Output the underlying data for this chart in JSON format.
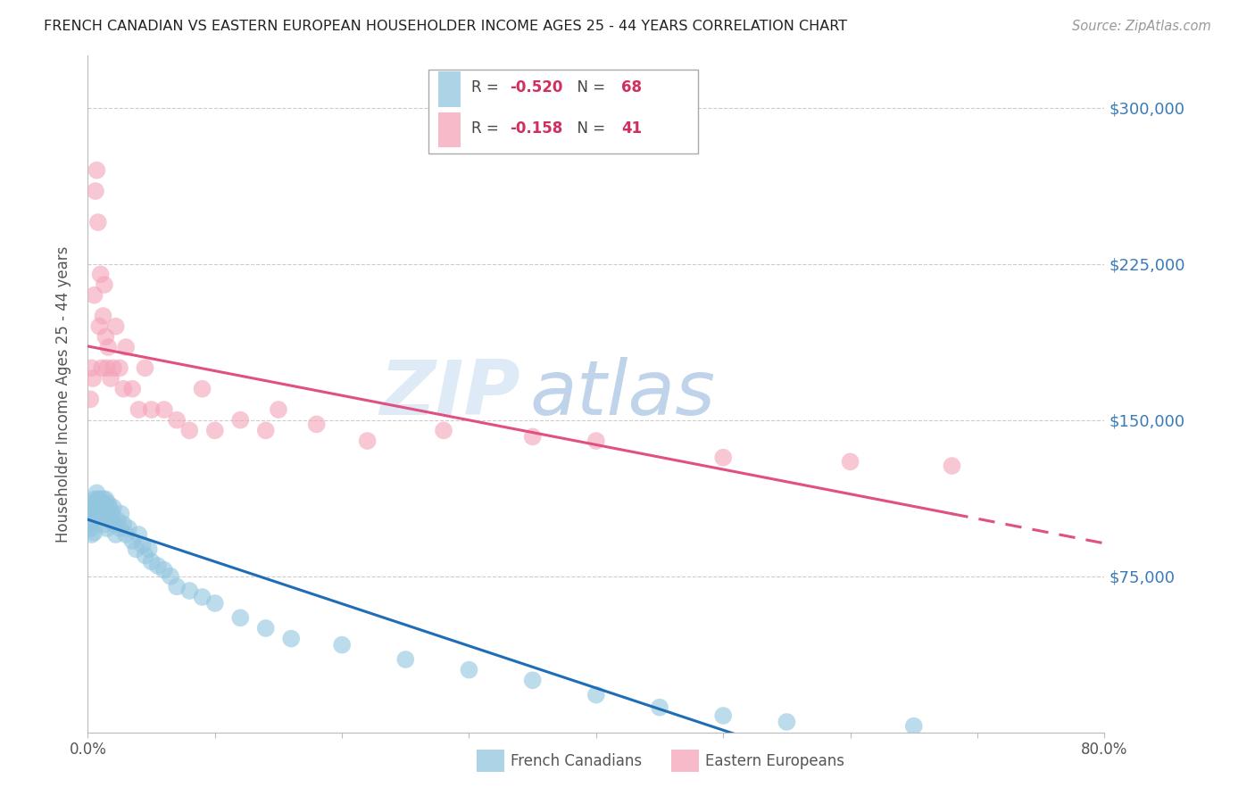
{
  "title": "FRENCH CANADIAN VS EASTERN EUROPEAN HOUSEHOLDER INCOME AGES 25 - 44 YEARS CORRELATION CHART",
  "source": "Source: ZipAtlas.com",
  "ylabel": "Householder Income Ages 25 - 44 years",
  "yticks": [
    0,
    75000,
    150000,
    225000,
    300000
  ],
  "ytick_labels": [
    "",
    "$75,000",
    "$150,000",
    "$225,000",
    "$300,000"
  ],
  "ymin": 0,
  "ymax": 325000,
  "xmin": 0.0,
  "xmax": 0.8,
  "french_canadians_color": "#92c5de",
  "eastern_europeans_color": "#f4a3b8",
  "trendline_blue_color": "#1f6db5",
  "trendline_pink_color": "#e05080",
  "watermark_zip": "ZIP",
  "watermark_atlas": "atlas",
  "fc_R": "-0.520",
  "fc_N": "68",
  "ee_R": "-0.158",
  "ee_N": "41",
  "legend_label_fc": "French Canadians",
  "legend_label_ee": "Eastern Europeans",
  "fc_x": [
    0.001,
    0.002,
    0.002,
    0.003,
    0.003,
    0.004,
    0.004,
    0.005,
    0.005,
    0.006,
    0.006,
    0.007,
    0.007,
    0.008,
    0.008,
    0.009,
    0.009,
    0.01,
    0.01,
    0.011,
    0.011,
    0.012,
    0.012,
    0.013,
    0.013,
    0.014,
    0.014,
    0.015,
    0.015,
    0.016,
    0.017,
    0.018,
    0.019,
    0.02,
    0.021,
    0.022,
    0.023,
    0.025,
    0.026,
    0.028,
    0.03,
    0.032,
    0.035,
    0.038,
    0.04,
    0.043,
    0.045,
    0.048,
    0.05,
    0.055,
    0.06,
    0.065,
    0.07,
    0.08,
    0.09,
    0.1,
    0.12,
    0.14,
    0.16,
    0.2,
    0.25,
    0.3,
    0.35,
    0.4,
    0.45,
    0.5,
    0.55,
    0.65
  ],
  "fc_y": [
    100000,
    105000,
    98000,
    108000,
    95000,
    110000,
    102000,
    112000,
    96000,
    110000,
    104000,
    108000,
    115000,
    112000,
    108000,
    105000,
    112000,
    110000,
    108000,
    105000,
    110000,
    108000,
    112000,
    105000,
    100000,
    108000,
    112000,
    105000,
    98000,
    110000,
    108000,
    102000,
    105000,
    108000,
    100000,
    95000,
    102000,
    98000,
    105000,
    100000,
    95000,
    98000,
    92000,
    88000,
    95000,
    90000,
    85000,
    88000,
    82000,
    80000,
    78000,
    75000,
    70000,
    68000,
    65000,
    62000,
    55000,
    50000,
    45000,
    42000,
    35000,
    30000,
    25000,
    18000,
    12000,
    8000,
    5000,
    3000
  ],
  "ee_x": [
    0.002,
    0.003,
    0.004,
    0.005,
    0.006,
    0.007,
    0.008,
    0.009,
    0.01,
    0.011,
    0.012,
    0.013,
    0.014,
    0.015,
    0.016,
    0.018,
    0.02,
    0.022,
    0.025,
    0.028,
    0.03,
    0.035,
    0.04,
    0.045,
    0.05,
    0.06,
    0.07,
    0.08,
    0.09,
    0.1,
    0.12,
    0.14,
    0.18,
    0.22,
    0.28,
    0.35,
    0.4,
    0.5,
    0.6,
    0.68,
    0.15
  ],
  "ee_y": [
    160000,
    175000,
    170000,
    210000,
    260000,
    270000,
    245000,
    195000,
    220000,
    175000,
    200000,
    215000,
    190000,
    175000,
    185000,
    170000,
    175000,
    195000,
    175000,
    165000,
    185000,
    165000,
    155000,
    175000,
    155000,
    155000,
    150000,
    145000,
    165000,
    145000,
    150000,
    145000,
    148000,
    140000,
    145000,
    142000,
    140000,
    132000,
    130000,
    128000,
    155000
  ]
}
